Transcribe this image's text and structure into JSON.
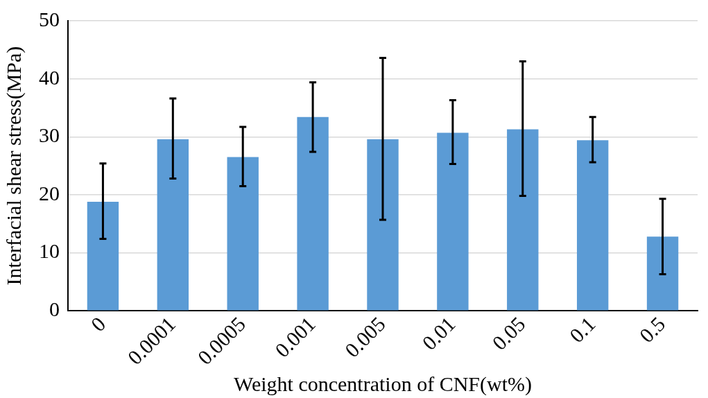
{
  "chart_data": {
    "type": "bar",
    "xlabel": "Weight concentration of CNF(wt%)",
    "ylabel": "Interfacial shear stress(MPa)",
    "categories": [
      "0",
      "0.0001",
      "0.0005",
      "0.001",
      "0.005",
      "0.01",
      "0.05",
      "0.1",
      "0.5"
    ],
    "values": [
      18.8,
      29.6,
      26.5,
      33.4,
      29.6,
      30.7,
      31.3,
      29.4,
      12.8
    ],
    "errors": [
      [
        12.4,
        25.4
      ],
      [
        22.8,
        36.6
      ],
      [
        21.5,
        31.7
      ],
      [
        27.4,
        39.4
      ],
      [
        15.7,
        43.6
      ],
      [
        25.3,
        36.3
      ],
      [
        19.8,
        43.0
      ],
      [
        25.6,
        33.4
      ],
      [
        6.3,
        19.3
      ]
    ],
    "color": "#5b9bd5",
    "ylim": [
      0,
      50
    ],
    "yticks": [
      0,
      10,
      20,
      30,
      40,
      50
    ],
    "grid": "y",
    "legend": false
  }
}
